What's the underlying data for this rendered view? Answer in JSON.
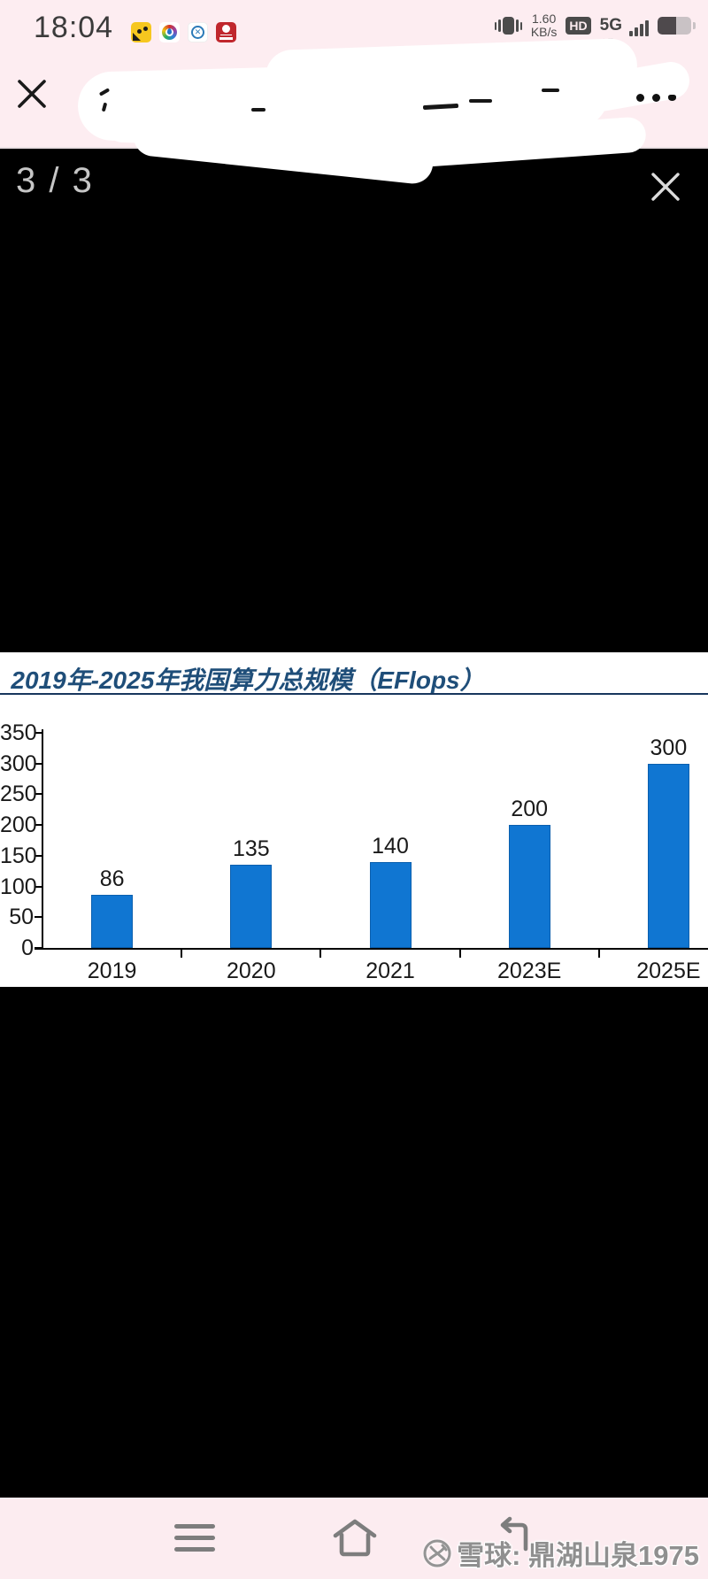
{
  "colors": {
    "status_nav_pink": "#fdedf1",
    "bar_blue": "#1076d2",
    "title_blue": "#1f4e79",
    "rule_navy": "#17365d",
    "viewer_black": "#000000",
    "watermark_gray": "#8f8f8f"
  },
  "status_bar": {
    "time": "18:04",
    "net_speed_value": "1.60",
    "net_speed_unit": "KB/s",
    "hd_badge": "HD",
    "network_type": "5G",
    "notification_icons": [
      "bee-app-icon",
      "color-ring-app-icon",
      "xueqiu-app-icon",
      "bank-app-icon"
    ],
    "right_icons": [
      "vibrate-icon",
      "hd-icon",
      "signal-5g-icon",
      "battery-icon"
    ]
  },
  "header": {
    "close_icon": "close-x",
    "menu_icon": "ellipsis-menu",
    "title_redacted": true
  },
  "viewer": {
    "page_counter": "3 / 3",
    "close_icon": "close-x"
  },
  "chart_data": {
    "type": "bar",
    "title": "2019年-2025年我国算力总规模（EFlops）",
    "categories": [
      "2019",
      "2020",
      "2021",
      "2023E",
      "2025E"
    ],
    "values": [
      86,
      135,
      140,
      200,
      300
    ],
    "xlabel": "",
    "ylabel": "",
    "ylim": [
      0,
      350
    ],
    "yticks": [
      0,
      50,
      100,
      150,
      200,
      250,
      300,
      350
    ],
    "grid": false,
    "legend": false,
    "bar_color": "#1076d2",
    "value_labels": [
      "86",
      "135",
      "140",
      "200",
      "300"
    ]
  },
  "navbar": {
    "icons": [
      "menu-icon",
      "home-icon",
      "back-icon"
    ]
  },
  "watermark": {
    "text": "雪球: 鼎湖山泉1975",
    "logo": "xueqiu-logo"
  }
}
